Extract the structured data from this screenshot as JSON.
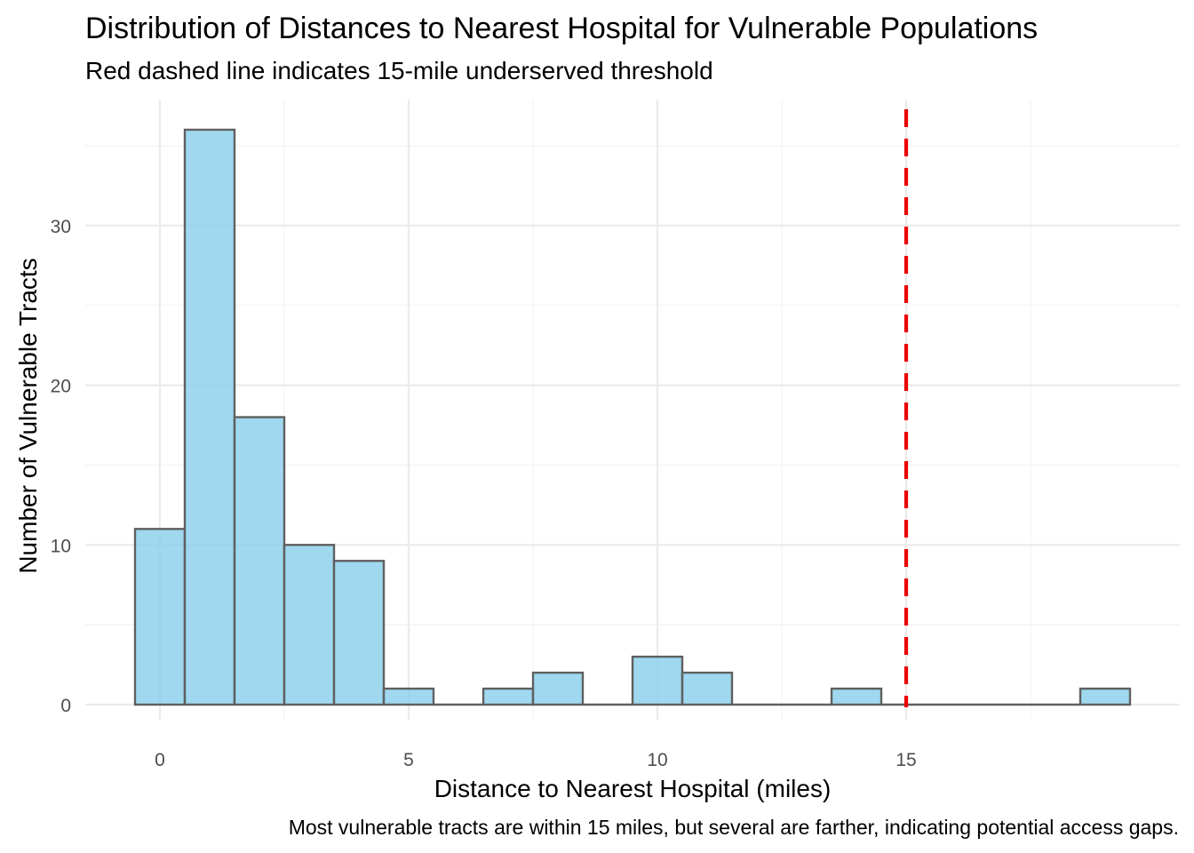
{
  "chart_data": {
    "type": "bar",
    "title": "Distribution of Distances to Nearest Hospital for Vulnerable Populations",
    "subtitle": "Red dashed line indicates 15-mile underserved threshold",
    "caption": "Most vulnerable tracts are within 15 miles, but several are farther, indicating potential access gaps.",
    "xlabel": "Distance to Nearest Hospital (miles)",
    "ylabel": "Number of Vulnerable Tracts",
    "xlim": [
      -1,
      20
    ],
    "ylim": [
      0,
      36
    ],
    "x_ticks": [
      0,
      5,
      10,
      15
    ],
    "y_ticks": [
      0,
      10,
      20,
      30
    ],
    "grid": true,
    "bin_width": 1,
    "bins": [
      {
        "x": 0,
        "count": 11
      },
      {
        "x": 1,
        "count": 36
      },
      {
        "x": 2,
        "count": 18
      },
      {
        "x": 3,
        "count": 10
      },
      {
        "x": 4,
        "count": 9
      },
      {
        "x": 5,
        "count": 1
      },
      {
        "x": 6,
        "count": 0
      },
      {
        "x": 7,
        "count": 1
      },
      {
        "x": 8,
        "count": 2
      },
      {
        "x": 9,
        "count": 0
      },
      {
        "x": 10,
        "count": 3
      },
      {
        "x": 11,
        "count": 2
      },
      {
        "x": 12,
        "count": 0
      },
      {
        "x": 13,
        "count": 0
      },
      {
        "x": 14,
        "count": 1
      },
      {
        "x": 15,
        "count": 0
      },
      {
        "x": 16,
        "count": 0
      },
      {
        "x": 17,
        "count": 0
      },
      {
        "x": 18,
        "count": 0
      },
      {
        "x": 19,
        "count": 1
      }
    ],
    "threshold": {
      "x": 15,
      "color": "#ee0000",
      "style": "dashed"
    },
    "bar_fill": "#87ceeb",
    "bar_stroke": "#606060"
  }
}
